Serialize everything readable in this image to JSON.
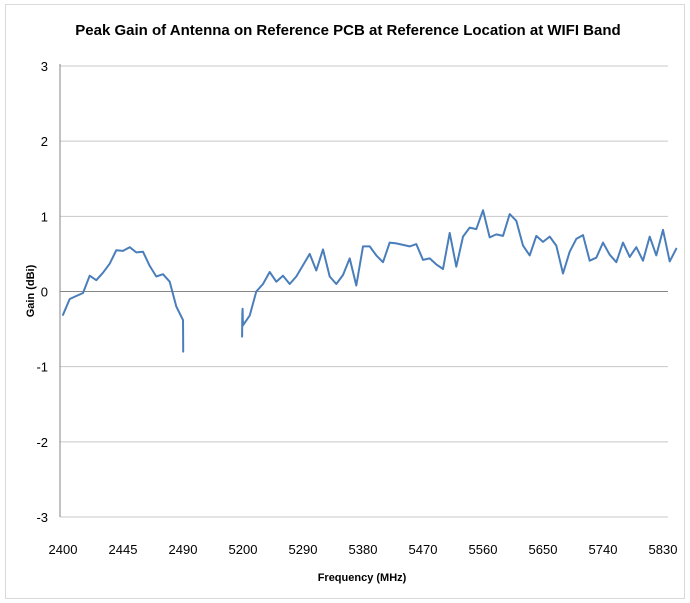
{
  "chart_data": {
    "type": "line",
    "title": "Peak Gain of Antenna on Reference PCB at Reference Location at WIFI Band",
    "xlabel": "Frequency  (MHz)",
    "ylabel": "Gain (dBi)",
    "ylim": [
      -3,
      3
    ],
    "yticks": [
      -3,
      -2,
      -1,
      0,
      1,
      2,
      3
    ],
    "x_tick_labels": [
      "2400",
      "2445",
      "2490",
      "5200",
      "5290",
      "5380",
      "5470",
      "5560",
      "5650",
      "5740",
      "5830"
    ],
    "grid": "horizontal",
    "legend": "none",
    "series_color": "#4a7ebb",
    "series": [
      {
        "segments": [
          {
            "x": [
              2400,
              2405,
              2410,
              2415,
              2420,
              2425,
              2430,
              2435,
              2440,
              2445,
              2450,
              2455,
              2460,
              2465,
              2470,
              2475,
              2480,
              2485,
              2490,
              2495,
              2500
            ],
            "y": [
              -0.31,
              -0.1,
              -0.06,
              -0.02,
              0.21,
              0.15,
              0.25,
              0.37,
              0.55,
              0.54,
              0.59,
              0.52,
              0.53,
              0.34,
              0.2,
              0.23,
              0.13,
              -0.2,
              -0.38,
              -0.53,
              -0.8
            ]
          },
          {
            "x": [
              5160,
              5170,
              5180,
              5190,
              5200,
              5210,
              5220,
              5230,
              5240,
              5250,
              5260,
              5270,
              5280,
              5290,
              5300,
              5310,
              5320,
              5330,
              5340,
              5350,
              5360,
              5370,
              5380,
              5390,
              5400,
              5410,
              5420,
              5430,
              5440,
              5450,
              5460,
              5470,
              5480,
              5490,
              5500,
              5510,
              5520,
              5530,
              5540,
              5550,
              5560,
              5570,
              5580,
              5590,
              5600,
              5610,
              5620,
              5630,
              5640,
              5650,
              5660,
              5670,
              5680,
              5690,
              5700,
              5710,
              5720,
              5730,
              5740,
              5750,
              5760,
              5770,
              5780,
              5790,
              5800,
              5810,
              5820,
              5830,
              5840,
              5850
            ],
            "y": [
              -0.6,
              -0.3,
              -0.23,
              -0.37,
              -0.45,
              -0.32,
              0.0,
              0.1,
              0.26,
              0.13,
              0.21,
              0.1,
              0.2,
              0.35,
              0.5,
              0.28,
              0.56,
              0.2,
              0.1,
              0.22,
              0.44,
              0.08,
              0.6,
              0.6,
              0.48,
              0.39,
              0.65,
              0.64,
              0.62,
              0.6,
              0.63,
              0.42,
              0.44,
              0.36,
              0.3,
              0.78,
              0.33,
              0.73,
              0.85,
              0.83,
              1.08,
              0.72,
              0.76,
              0.74,
              1.03,
              0.94,
              0.61,
              0.48,
              0.74,
              0.66,
              0.73,
              0.61,
              0.24,
              0.53,
              0.7,
              0.75,
              0.41,
              0.45,
              0.65,
              0.49,
              0.39,
              0.65,
              0.46,
              0.59,
              0.41,
              0.73,
              0.48,
              0.82,
              0.4,
              0.57
            ]
          }
        ]
      }
    ]
  }
}
